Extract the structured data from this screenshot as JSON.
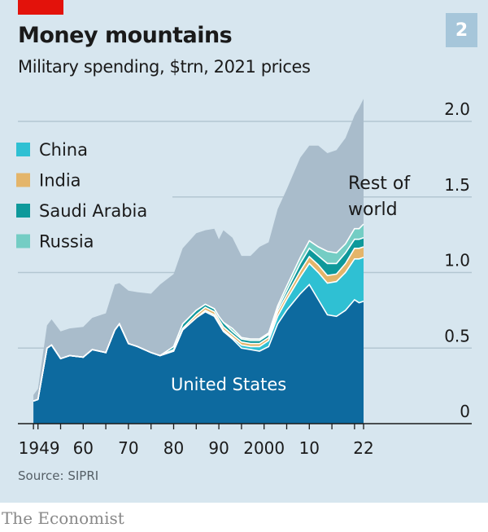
{
  "header": {
    "title": "Money mountains",
    "subtitle": "Military spending, $trn, 2021 prices",
    "chart_number": "2"
  },
  "footer": {
    "source": "Source: SIPRI",
    "brand": "The Economist"
  },
  "colors": {
    "United States": "#0d6a9f",
    "China": "#2fc0d3",
    "India": "#e4b56a",
    "Saudi Arabia": "#0e999b",
    "Russia": "#74cdc4",
    "Rest of world": "#a9bccb",
    "background": "#d7e6ef",
    "accent": "#e3120b"
  },
  "chart_data": {
    "type": "area",
    "stacked": true,
    "title": "Money mountains",
    "subtitle": "Military spending, $trn, 2021 prices",
    "ylim": [
      0,
      2.15
    ],
    "xlim": [
      1949,
      2022
    ],
    "y_ticks": [
      {
        "v": 0,
        "label": "0"
      },
      {
        "v": 0.5,
        "label": "0.5"
      },
      {
        "v": 1,
        "label": "1.0"
      },
      {
        "v": 1.5,
        "label": "1.5"
      },
      {
        "v": 2,
        "label": "2.0"
      }
    ],
    "x_ticks": [
      {
        "v": 1949,
        "label": "1949"
      },
      {
        "v": 1960,
        "label": "60"
      },
      {
        "v": 1970,
        "label": "70"
      },
      {
        "v": 1980,
        "label": "80"
      },
      {
        "v": 1990,
        "label": "90"
      },
      {
        "v": 2000,
        "label": "2000"
      },
      {
        "v": 2010,
        "label": "10"
      },
      {
        "v": 2022,
        "label": "22"
      }
    ],
    "legend": [
      "China",
      "India",
      "Saudi Arabia",
      "Russia"
    ],
    "area_labels": {
      "us": "United States",
      "rest_line1": "Rest of",
      "rest_line2": "world"
    },
    "x": [
      1949,
      1950,
      1952,
      1953,
      1955,
      1957,
      1960,
      1962,
      1965,
      1967,
      1968,
      1970,
      1972,
      1975,
      1977,
      1980,
      1982,
      1985,
      1987,
      1989,
      1990,
      1991,
      1993,
      1995,
      1997,
      1999,
      2001,
      2003,
      2005,
      2008,
      2010,
      2012,
      2014,
      2016,
      2018,
      2020,
      2021,
      2022
    ],
    "series": [
      {
        "name": "United States",
        "values": [
          0.15,
          0.16,
          0.5,
          0.52,
          0.43,
          0.45,
          0.44,
          0.49,
          0.47,
          0.62,
          0.66,
          0.53,
          0.51,
          0.47,
          0.45,
          0.48,
          0.62,
          0.7,
          0.74,
          0.71,
          0.66,
          0.61,
          0.56,
          0.5,
          0.49,
          0.48,
          0.51,
          0.66,
          0.75,
          0.86,
          0.92,
          0.82,
          0.72,
          0.71,
          0.75,
          0.82,
          0.8,
          0.81
        ]
      },
      {
        "name": "China",
        "values": [
          0,
          0,
          0,
          0,
          0,
          0,
          0,
          0,
          0,
          0,
          0,
          0,
          0,
          0,
          0,
          0,
          0,
          0,
          0.01,
          0.01,
          0.01,
          0.01,
          0.01,
          0.02,
          0.02,
          0.03,
          0.04,
          0.05,
          0.07,
          0.11,
          0.14,
          0.18,
          0.21,
          0.23,
          0.25,
          0.27,
          0.29,
          0.29
        ]
      },
      {
        "name": "India",
        "values": [
          0,
          0,
          0,
          0,
          0,
          0,
          0,
          0,
          0,
          0,
          0,
          0,
          0,
          0,
          0,
          0.01,
          0.01,
          0.02,
          0.02,
          0.02,
          0.02,
          0.02,
          0.02,
          0.02,
          0.02,
          0.02,
          0.02,
          0.03,
          0.03,
          0.04,
          0.045,
          0.05,
          0.05,
          0.05,
          0.06,
          0.07,
          0.07,
          0.07
        ]
      },
      {
        "name": "Saudi Arabia",
        "values": [
          0,
          0,
          0,
          0,
          0,
          0,
          0,
          0,
          0,
          0,
          0,
          0,
          0,
          0,
          0,
          0.02,
          0.03,
          0.03,
          0.02,
          0.02,
          0.02,
          0.03,
          0.02,
          0.02,
          0.02,
          0.02,
          0.02,
          0.02,
          0.03,
          0.05,
          0.055,
          0.06,
          0.08,
          0.07,
          0.07,
          0.06,
          0.06,
          0.06
        ]
      },
      {
        "name": "Russia",
        "values": [
          0,
          0,
          0,
          0,
          0,
          0,
          0,
          0,
          0,
          0,
          0,
          0,
          0,
          0,
          0,
          0,
          0,
          0,
          0,
          0,
          0,
          0,
          0.02,
          0.01,
          0.01,
          0.01,
          0.01,
          0.02,
          0.03,
          0.04,
          0.05,
          0.06,
          0.08,
          0.07,
          0.06,
          0.07,
          0.07,
          0.09
        ]
      },
      {
        "name": "Rest of world",
        "values_total": [
          0.19,
          0.23,
          0.65,
          0.69,
          0.61,
          0.63,
          0.64,
          0.7,
          0.73,
          0.92,
          0.93,
          0.88,
          0.87,
          0.86,
          0.92,
          0.99,
          1.16,
          1.26,
          1.28,
          1.29,
          1.22,
          1.28,
          1.23,
          1.11,
          1.11,
          1.17,
          1.2,
          1.42,
          1.55,
          1.76,
          1.84,
          1.84,
          1.79,
          1.81,
          1.89,
          2.04,
          2.09,
          2.15
        ]
      }
    ]
  }
}
